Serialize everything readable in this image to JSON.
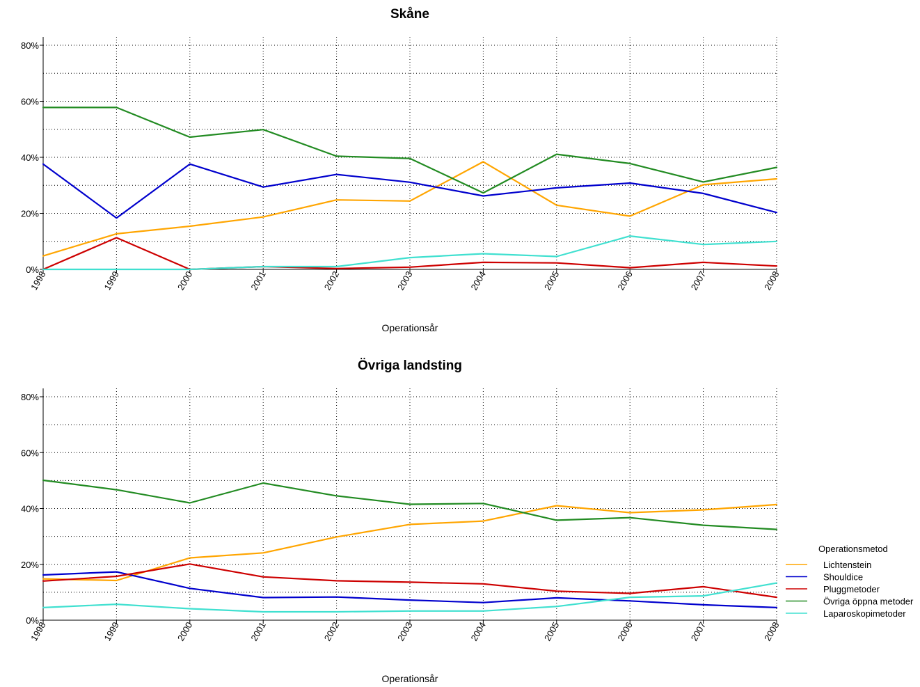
{
  "chart_data": [
    {
      "type": "line",
      "title": "Skåne",
      "xlabel": "Operationsår",
      "ylabel": "",
      "ylim": [
        0,
        0.8
      ],
      "yticks": [
        "0%",
        "20%",
        "40%",
        "60%",
        "80%"
      ],
      "x": [
        "1998",
        "1999",
        "2000",
        "2001",
        "2002",
        "2003",
        "2004",
        "2005",
        "2006",
        "2007",
        "2008"
      ],
      "grid": true,
      "series": [
        {
          "name": "Lichtenstein",
          "color": "#FFA500",
          "values": [
            0.048,
            0.127,
            0.154,
            0.187,
            0.248,
            0.244,
            0.384,
            0.229,
            0.19,
            0.302,
            0.323
          ]
        },
        {
          "name": "Shouldice",
          "color": "#0000CD",
          "values": [
            0.376,
            0.183,
            0.376,
            0.294,
            0.339,
            0.311,
            0.262,
            0.291,
            0.308,
            0.271,
            0.203
          ]
        },
        {
          "name": "Pluggmetoder",
          "color": "#CD0000",
          "values": [
            0.0,
            0.113,
            0.0,
            0.01,
            0.003,
            0.008,
            0.025,
            0.023,
            0.006,
            0.025,
            0.012
          ]
        },
        {
          "name": "Övriga öppna metoder",
          "color": "#228B22",
          "values": [
            0.578,
            0.578,
            0.472,
            0.499,
            0.404,
            0.396,
            0.273,
            0.411,
            0.378,
            0.312,
            0.364
          ]
        },
        {
          "name": "Laparoskopimetoder",
          "color": "#40E0D0",
          "values": [
            0.0,
            0.0,
            0.0,
            0.01,
            0.01,
            0.042,
            0.056,
            0.046,
            0.119,
            0.089,
            0.1
          ]
        }
      ]
    },
    {
      "type": "line",
      "title": "Övriga landsting",
      "xlabel": "Operationsår",
      "ylabel": "",
      "ylim": [
        0,
        0.8
      ],
      "yticks": [
        "0%",
        "20%",
        "40%",
        "60%",
        "80%"
      ],
      "x": [
        "1998",
        "1999",
        "2000",
        "2001",
        "2002",
        "2003",
        "2004",
        "2005",
        "2006",
        "2007",
        "2008"
      ],
      "grid": true,
      "series": [
        {
          "name": "Lichtenstein",
          "color": "#FFA500",
          "values": [
            0.148,
            0.142,
            0.223,
            0.241,
            0.298,
            0.343,
            0.355,
            0.41,
            0.385,
            0.395,
            0.414
          ]
        },
        {
          "name": "Shouldice",
          "color": "#0000CD",
          "values": [
            0.162,
            0.173,
            0.114,
            0.081,
            0.083,
            0.072,
            0.063,
            0.08,
            0.069,
            0.055,
            0.045
          ]
        },
        {
          "name": "Pluggmetoder",
          "color": "#CD0000",
          "values": [
            0.14,
            0.157,
            0.201,
            0.155,
            0.141,
            0.136,
            0.13,
            0.104,
            0.096,
            0.12,
            0.082
          ]
        },
        {
          "name": "Övriga öppna metoder",
          "color": "#228B22",
          "values": [
            0.501,
            0.467,
            0.42,
            0.491,
            0.445,
            0.415,
            0.418,
            0.358,
            0.367,
            0.34,
            0.325
          ]
        },
        {
          "name": "Laparoskopimetoder",
          "color": "#40E0D0",
          "values": [
            0.045,
            0.057,
            0.041,
            0.03,
            0.03,
            0.033,
            0.033,
            0.049,
            0.082,
            0.087,
            0.133
          ]
        }
      ]
    }
  ],
  "legend": {
    "title": "Operationsmetod",
    "placement": "right",
    "items": [
      {
        "label": "Lichtenstein",
        "color": "#FFA500"
      },
      {
        "label": "Shouldice",
        "color": "#0000CD"
      },
      {
        "label": "Pluggmetoder",
        "color": "#CD0000"
      },
      {
        "label": "Övriga öppna metoder",
        "color": "#228B22"
      },
      {
        "label": "Laparoskopimetoder",
        "color": "#40E0D0"
      }
    ]
  }
}
